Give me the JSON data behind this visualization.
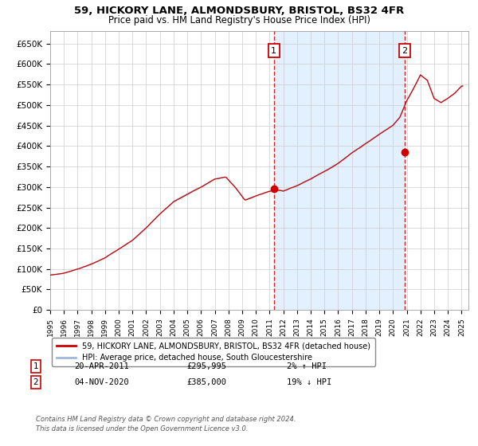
{
  "title1": "59, HICKORY LANE, ALMONDSBURY, BRISTOL, BS32 4FR",
  "title2": "Price paid vs. HM Land Registry's House Price Index (HPI)",
  "legend1": "59, HICKORY LANE, ALMONDSBURY, BRISTOL, BS32 4FR (detached house)",
  "legend2": "HPI: Average price, detached house, South Gloucestershire",
  "annotation1_date": "20-APR-2011",
  "annotation1_price": "£295,995",
  "annotation1_pct": "2% ↑ HPI",
  "annotation1_year": 2011.3,
  "annotation1_value": 295995,
  "annotation2_date": "04-NOV-2020",
  "annotation2_price": "£385,000",
  "annotation2_pct": "19% ↓ HPI",
  "annotation2_year": 2020.85,
  "annotation2_value": 385000,
  "hpi_color": "#a0b8d8",
  "price_color": "#cc0000",
  "span_color": "#ddeeff",
  "grid_color": "#cccccc",
  "ylim": [
    0,
    680000
  ],
  "xlim_start": 1995,
  "xlim_end": 2025.5,
  "yticks": [
    0,
    50000,
    100000,
    150000,
    200000,
    250000,
    300000,
    350000,
    400000,
    450000,
    500000,
    550000,
    600000,
    650000
  ],
  "ylabels": [
    "£0",
    "£50K",
    "£100K",
    "£150K",
    "£200K",
    "£250K",
    "£300K",
    "£350K",
    "£400K",
    "£450K",
    "£500K",
    "£550K",
    "£600K",
    "£650K"
  ],
  "footer": "Contains HM Land Registry data © Crown copyright and database right 2024.\nThis data is licensed under the Open Government Licence v3.0.",
  "key_years_hpi": [
    1995,
    1996,
    1997,
    1998,
    1999,
    2000,
    2001,
    2002,
    2003,
    2004,
    2005,
    2006,
    2007,
    2007.8,
    2008.5,
    2009.2,
    2010,
    2011,
    2011.5,
    2012,
    2013,
    2014,
    2015,
    2016,
    2017,
    2018,
    2019,
    2020,
    2020.5,
    2021,
    2021.5,
    2022,
    2022.5,
    2023,
    2023.5,
    2024,
    2024.5,
    2025.0
  ],
  "key_vals_hpi": [
    85000,
    90000,
    100000,
    112000,
    128000,
    148000,
    170000,
    200000,
    235000,
    265000,
    283000,
    300000,
    320000,
    325000,
    300000,
    270000,
    280000,
    292000,
    295000,
    292000,
    305000,
    322000,
    340000,
    360000,
    385000,
    408000,
    430000,
    452000,
    472000,
    512000,
    542000,
    575000,
    562000,
    518000,
    508000,
    518000,
    530000,
    548000
  ]
}
